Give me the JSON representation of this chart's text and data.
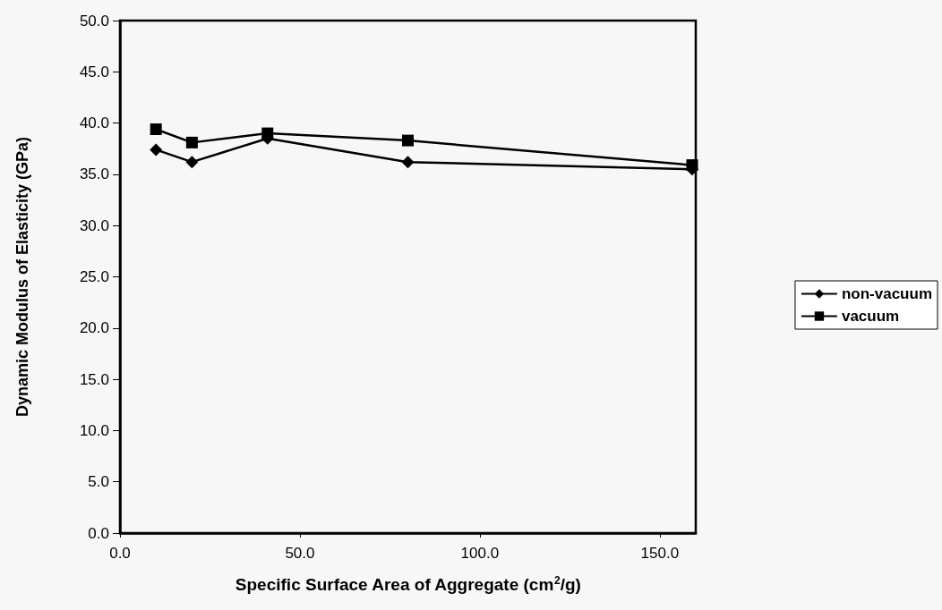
{
  "chart_data": {
    "type": "line",
    "xlabel": "Specific Surface Area of Aggregate (cm$^{2}$/g)",
    "ylabel": "Dynamic Modulus of Elasticity (GPa)",
    "x": [
      10,
      20,
      41,
      80,
      159
    ],
    "series": [
      {
        "name": "non-vacuum",
        "color": "#000000",
        "marker": "diamond",
        "values": [
          37.4,
          36.2,
          38.5,
          36.2,
          35.5
        ]
      },
      {
        "name": "vacuum",
        "color": "#000000",
        "marker": "square",
        "values": [
          39.4,
          38.1,
          39.0,
          38.3,
          35.9
        ]
      }
    ],
    "xlim": [
      0,
      160
    ],
    "xticks": [
      {
        "value": 0,
        "label": "0.0"
      },
      {
        "value": 50,
        "label": "50.0"
      },
      {
        "value": 100,
        "label": "100.0"
      },
      {
        "value": 150,
        "label": "150.0"
      }
    ],
    "ylim": [
      0,
      50
    ],
    "yticks": [
      {
        "value": 0,
        "label": "0.0"
      },
      {
        "value": 5,
        "label": "5.0"
      },
      {
        "value": 10,
        "label": "10.0"
      },
      {
        "value": 15,
        "label": "15.0"
      },
      {
        "value": 20,
        "label": "20.0"
      },
      {
        "value": 25,
        "label": "25.0"
      },
      {
        "value": 30,
        "label": "30.0"
      },
      {
        "value": 35,
        "label": "35.0"
      },
      {
        "value": 40,
        "label": "40.0"
      },
      {
        "value": 45,
        "label": "45.0"
      },
      {
        "value": 50,
        "label": "50.0"
      }
    ],
    "grid": false,
    "legend": "right",
    "line_style": "solid"
  }
}
